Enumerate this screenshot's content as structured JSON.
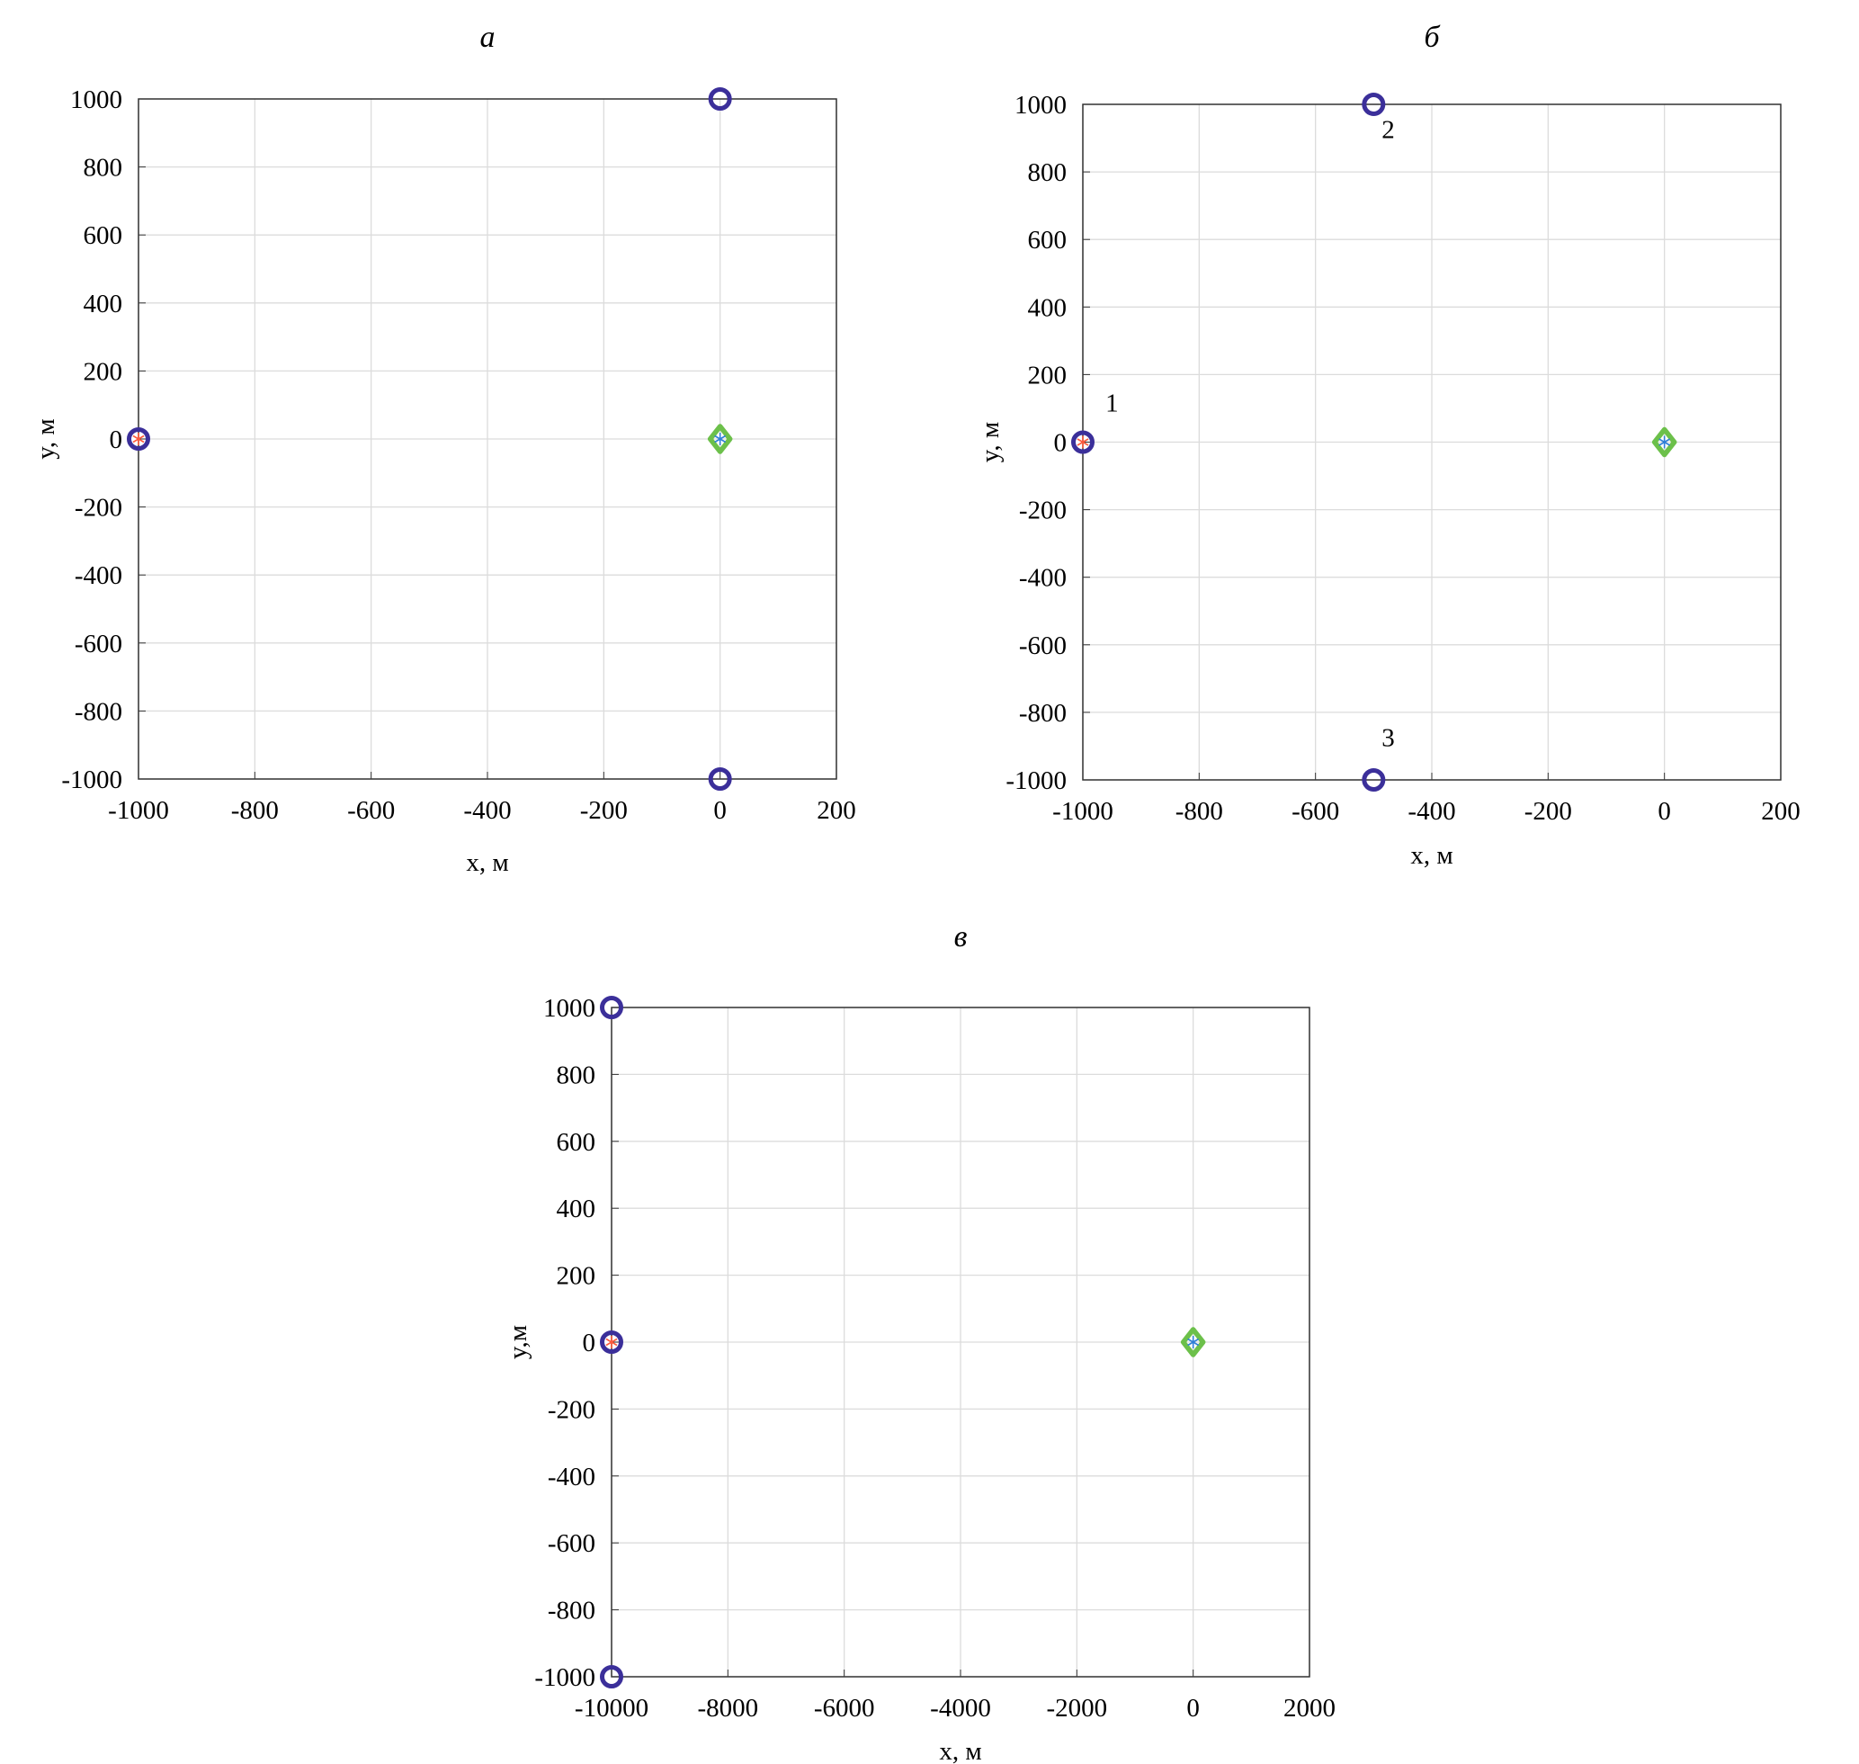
{
  "chart_data": [
    {
      "type": "scatter",
      "title": "а",
      "xlabel": "x, м",
      "ylabel": "y, м",
      "xlim": [
        -1000,
        200
      ],
      "ylim": [
        -1000,
        1000
      ],
      "xticks": [
        -1000,
        -800,
        -600,
        -400,
        -200,
        0,
        200
      ],
      "yticks": [
        -1000,
        -800,
        -600,
        -400,
        -200,
        0,
        200,
        400,
        600,
        800,
        1000
      ],
      "grid": true,
      "series": [
        {
          "marker": "circle",
          "color": "#3b2f9a",
          "points": [
            [
              -1000,
              0
            ],
            [
              0,
              1000
            ],
            [
              0,
              -1000
            ]
          ]
        },
        {
          "marker": "asterisk",
          "color": "#ff5a3c",
          "points": [
            [
              -1000,
              0
            ]
          ]
        },
        {
          "marker": "diamond",
          "color": "#6cc04a",
          "points": [
            [
              0,
              0
            ]
          ]
        },
        {
          "marker": "asterisk",
          "color": "#2f7fd8",
          "points": [
            [
              0,
              0
            ]
          ]
        }
      ],
      "annotations": []
    },
    {
      "type": "scatter",
      "title": "б",
      "xlabel": "x, м",
      "ylabel": "y, м",
      "xlim": [
        -1000,
        200
      ],
      "ylim": [
        -1000,
        1000
      ],
      "xticks": [
        -1000,
        -800,
        -600,
        -400,
        -200,
        0,
        200
      ],
      "yticks": [
        -1000,
        -800,
        -600,
        -400,
        -200,
        0,
        200,
        400,
        600,
        800,
        1000
      ],
      "grid": true,
      "series": [
        {
          "marker": "circle",
          "color": "#3b2f9a",
          "points": [
            [
              -1000,
              0
            ],
            [
              -500,
              1000
            ],
            [
              -500,
              -1000
            ]
          ]
        },
        {
          "marker": "asterisk",
          "color": "#ff5a3c",
          "points": [
            [
              -1000,
              0
            ]
          ]
        },
        {
          "marker": "diamond",
          "color": "#6cc04a",
          "points": [
            [
              0,
              0
            ]
          ]
        },
        {
          "marker": "asterisk",
          "color": "#2f7fd8",
          "points": [
            [
              0,
              0
            ]
          ]
        }
      ],
      "annotations": [
        {
          "text": "1",
          "x": -950,
          "y": 90
        },
        {
          "text": "2",
          "x": -475,
          "y": 900
        },
        {
          "text": "3",
          "x": -475,
          "y": -900
        }
      ]
    },
    {
      "type": "scatter",
      "title": "в",
      "xlabel": "x, м",
      "ylabel": "y,м",
      "xlim": [
        -10000,
        2000
      ],
      "ylim": [
        -1000,
        1000
      ],
      "xticks": [
        -10000,
        -8000,
        -6000,
        -4000,
        -2000,
        0,
        2000
      ],
      "yticks": [
        -1000,
        -800,
        -600,
        -400,
        -200,
        0,
        200,
        400,
        600,
        800,
        1000
      ],
      "grid": true,
      "series": [
        {
          "marker": "circle",
          "color": "#3b2f9a",
          "points": [
            [
              -10000,
              1000
            ],
            [
              -10000,
              0
            ],
            [
              -10000,
              -1000
            ]
          ]
        },
        {
          "marker": "asterisk",
          "color": "#ff5a3c",
          "points": [
            [
              -10000,
              0
            ]
          ]
        },
        {
          "marker": "diamond",
          "color": "#6cc04a",
          "points": [
            [
              0,
              0
            ]
          ]
        },
        {
          "marker": "asterisk",
          "color": "#2f7fd8",
          "points": [
            [
              0,
              0
            ]
          ]
        }
      ],
      "annotations": []
    }
  ]
}
